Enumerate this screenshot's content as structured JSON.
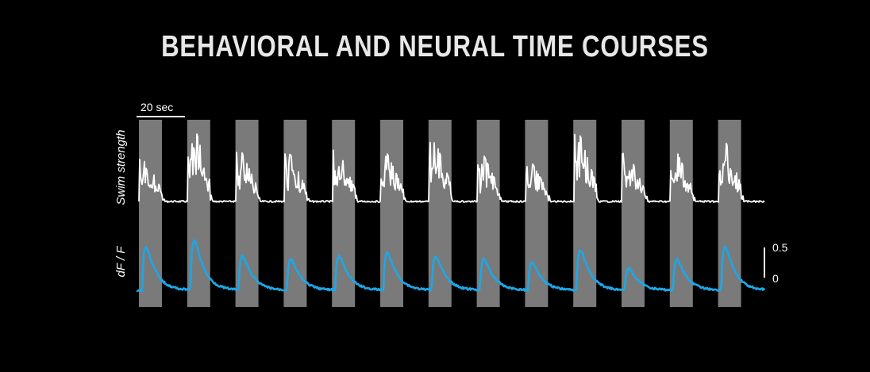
{
  "title": "BEHAVIORAL AND NEURAL TIME COURSES",
  "chart_data": {
    "type": "line",
    "title": "BEHAVIORAL AND NEURAL TIME COURSES",
    "time_scale_bar_label": "20 sec",
    "time_scale_bar_seconds": 20,
    "stimulus_epochs": 13,
    "colors": {
      "background": "#000000",
      "stimulus_band": "#7a7a7a",
      "swim_trace": "#ffffff",
      "dff_trace": "#1ea7e6",
      "text": "#ffffff"
    },
    "series": [
      {
        "name": "Swim strength",
        "ylabel": "Swim strength",
        "color": "#ffffff",
        "peaks_per_epoch": [
          0.55,
          1.0,
          0.62,
          0.6,
          0.65,
          0.62,
          0.78,
          0.6,
          0.5,
          0.85,
          0.62,
          0.65,
          0.8
        ]
      },
      {
        "name": "dF / F",
        "ylabel": "dF / F",
        "color": "#1ea7e6",
        "scale_ticks": [
          "0.5",
          "0"
        ],
        "peaks_per_epoch": [
          0.7,
          0.8,
          0.55,
          0.5,
          0.55,
          0.6,
          0.55,
          0.5,
          0.45,
          0.65,
          0.35,
          0.5,
          0.7
        ]
      }
    ]
  }
}
